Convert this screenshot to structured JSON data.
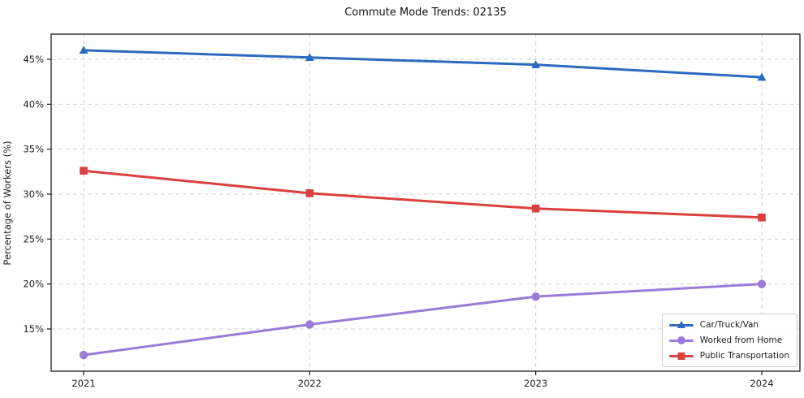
{
  "chart_data": {
    "type": "line",
    "title": "Commute Mode Trends: 02135",
    "xlabel": "",
    "ylabel": "Percentage of Workers (%)",
    "x": [
      "2021",
      "2022",
      "2023",
      "2024"
    ],
    "series": [
      {
        "name": "Car/Truck/Van",
        "marker": "triangle",
        "color": "#2b6abd",
        "values": [
          46.0,
          45.2,
          44.4,
          43.0
        ]
      },
      {
        "name": "Worked from Home",
        "marker": "circle",
        "color": "#9b7bd8",
        "values": [
          12.1,
          15.5,
          18.6,
          20.0
        ]
      },
      {
        "name": "Public Transportation",
        "marker": "square",
        "color": "#d9413e",
        "values": [
          32.6,
          30.1,
          28.4,
          27.4
        ]
      }
    ],
    "yticks": [
      15,
      20,
      25,
      30,
      35,
      40,
      45
    ],
    "ytick_suffix": "%",
    "ylim": [
      10.3,
      47.8
    ],
    "grid": true,
    "grid_style": "dashed",
    "grid_color": "#d2d2d2",
    "frame_color": "#1a1a1a",
    "legend_position": "lower right"
  }
}
